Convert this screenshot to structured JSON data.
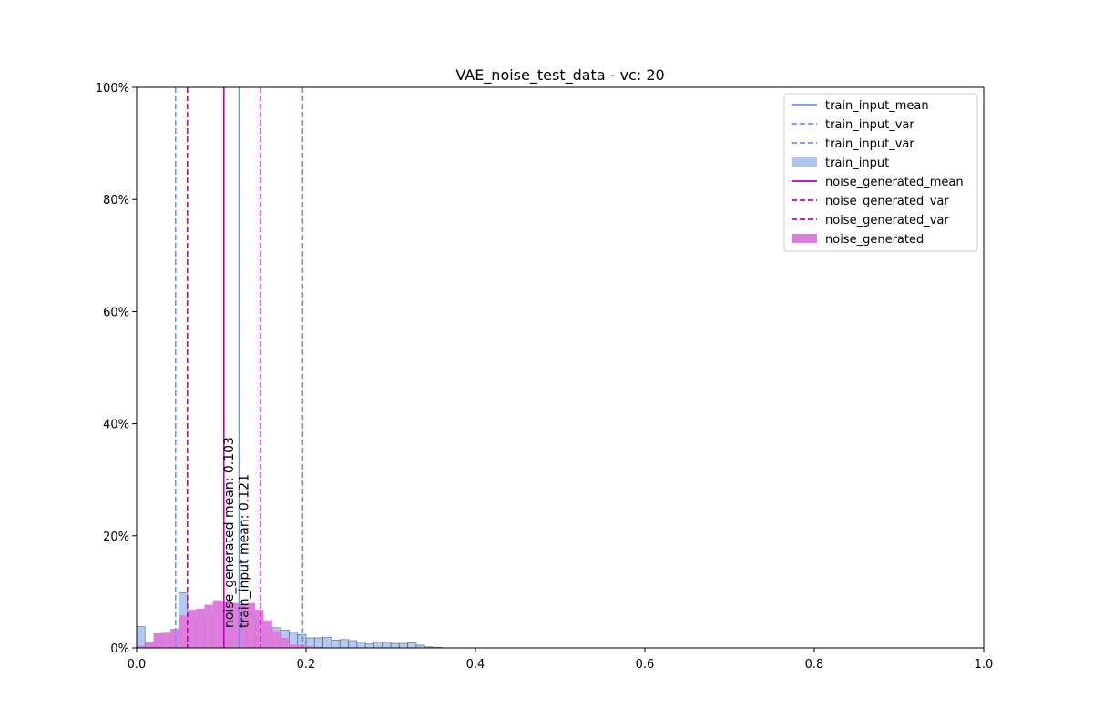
{
  "chart_data": {
    "type": "histogram",
    "title": "VAE_noise_test_data - vc: 20",
    "xlabel": "",
    "ylabel": "",
    "xlim": [
      0,
      1
    ],
    "ylim": [
      0,
      1
    ],
    "bin_width": 0.01,
    "x_ticks": [
      {
        "value": 0.0,
        "label": "0.0"
      },
      {
        "value": 0.2,
        "label": "0.2"
      },
      {
        "value": 0.4,
        "label": "0.4"
      },
      {
        "value": 0.6,
        "label": "0.6"
      },
      {
        "value": 0.8,
        "label": "0.8"
      },
      {
        "value": 1.0,
        "label": "1.0"
      }
    ],
    "y_ticks": [
      {
        "value": 0.0,
        "label": "0%"
      },
      {
        "value": 0.2,
        "label": "20%"
      },
      {
        "value": 0.4,
        "label": "40%"
      },
      {
        "value": 0.6,
        "label": "60%"
      },
      {
        "value": 0.8,
        "label": "80%"
      },
      {
        "value": 1.0,
        "label": "100%"
      }
    ],
    "series": [
      {
        "name": "train_input",
        "color": "#6495ed",
        "fill_alpha": 0.5,
        "bins_start": 0.0,
        "values": [
          0.038,
          0.005,
          0.012,
          0.026,
          0.026,
          0.098,
          0.05,
          0.052,
          0.055,
          0.06,
          0.065,
          0.067,
          0.065,
          0.062,
          0.043,
          0.037,
          0.036,
          0.032,
          0.028,
          0.024,
          0.018,
          0.018,
          0.019,
          0.014,
          0.015,
          0.013,
          0.01,
          0.007,
          0.01,
          0.01,
          0.008,
          0.008,
          0.009,
          0.005,
          0.002,
          0.001
        ]
      },
      {
        "name": "noise_generated",
        "color": "#dd7ddd",
        "fill_alpha": 1.0,
        "bins_start": 0.0,
        "values": [
          0.004,
          0.01,
          0.026,
          0.027,
          0.034,
          0.058,
          0.068,
          0.07,
          0.077,
          0.085,
          0.084,
          0.08,
          0.078,
          0.08,
          0.068,
          0.049,
          0.03,
          0.018,
          0.006,
          0.005,
          0.003,
          0.002
        ]
      }
    ],
    "vlines": [
      {
        "name": "train_input_mean",
        "x": 0.121,
        "color": "#6495ed",
        "style": "solid"
      },
      {
        "name": "train_input_var",
        "x": 0.046,
        "color": "#6495ed",
        "style": "dashed"
      },
      {
        "name": "train_input_var",
        "x": 0.196,
        "color": "#6495ed",
        "style": "dashed"
      },
      {
        "name": "noise_generated_mean",
        "x": 0.103,
        "color": "#bf00bf",
        "style": "solid"
      },
      {
        "name": "noise_generated_var",
        "x": 0.06,
        "color": "#bf00bf",
        "style": "dashed"
      },
      {
        "name": "noise_generated_var",
        "x": 0.146,
        "color": "#bf00bf",
        "style": "dashed"
      }
    ],
    "annotations": [
      {
        "text": "noise_generated mean: 0.103",
        "x": 0.103,
        "rotation": 90
      },
      {
        "text": "train_input mean: 0.121",
        "x": 0.121,
        "rotation": 90
      }
    ],
    "legend": {
      "position": "top-right",
      "entries": [
        {
          "label": "train_input_mean",
          "kind": "line",
          "color": "#6495ed",
          "style": "solid"
        },
        {
          "label": "train_input_var",
          "kind": "line",
          "color": "#6495ed",
          "style": "dashed"
        },
        {
          "label": "train_input_var",
          "kind": "line",
          "color": "#6495ed",
          "style": "dashed"
        },
        {
          "label": "train_input",
          "kind": "patch",
          "color": "#aec6f1"
        },
        {
          "label": "noise_generated_mean",
          "kind": "line",
          "color": "#bf00bf",
          "style": "solid"
        },
        {
          "label": "noise_generated_var",
          "kind": "line",
          "color": "#bf00bf",
          "style": "dashed"
        },
        {
          "label": "noise_generated_var",
          "kind": "line",
          "color": "#bf00bf",
          "style": "dashed"
        },
        {
          "label": "noise_generated",
          "kind": "patch",
          "color": "#dd7ddd"
        }
      ]
    },
    "grid": false
  }
}
